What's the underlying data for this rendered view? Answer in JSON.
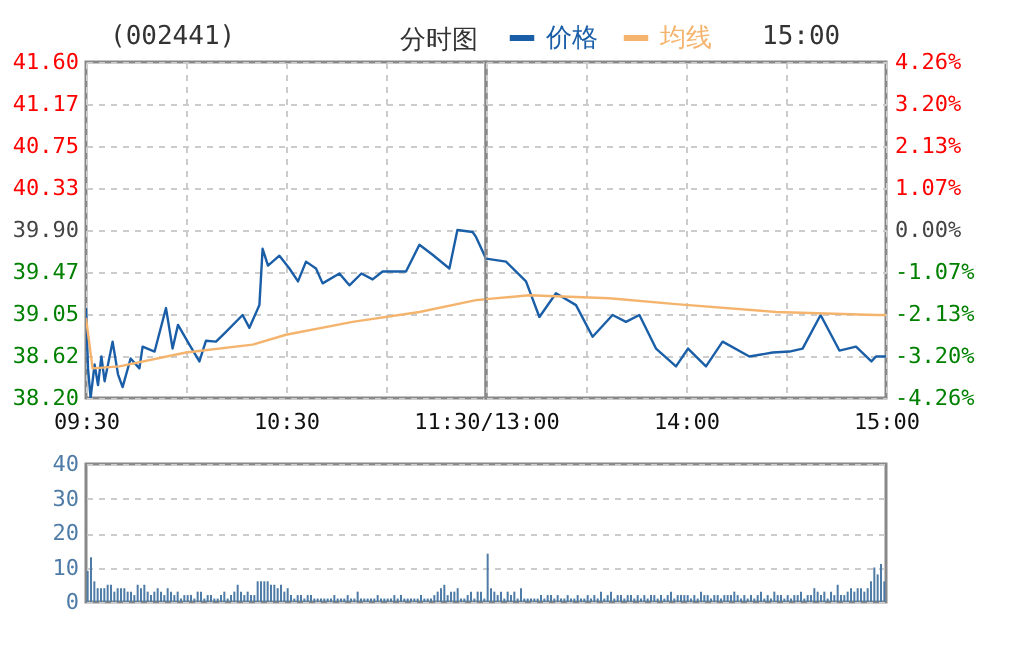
{
  "chart_data": [
    {
      "type": "line",
      "title": "(002441)",
      "subtitle": "分时图",
      "annotations": [
        "15:00"
      ],
      "xlim": [
        9.5,
        11.5
      ],
      "xticks": [
        {
          "value": 9.5,
          "label": "09:30"
        },
        {
          "value": 10,
          "label": null
        },
        {
          "value": 10.5,
          "label": "10:30"
        },
        {
          "value": 11,
          "label": null
        },
        {
          "value": 11.5,
          "label": "11:30/13:00"
        }
      ],
      "ylim": [
        38.2,
        41.6
      ],
      "yticks": [
        {
          "value": 38.2,
          "label": "38.20"
        },
        {
          "value": 38.62,
          "label": "38.62"
        },
        {
          "value": 39.05,
          "label": "39.05"
        },
        {
          "value": 39.47,
          "label": "39.47"
        },
        {
          "value": 39.9,
          "label": "39.90"
        },
        {
          "value": 40.33,
          "label": "40.33"
        },
        {
          "value": 40.75,
          "label": "40.75"
        },
        {
          "value": 41.17,
          "label": "41.17"
        },
        {
          "value": 41.6,
          "label": "41.60"
        }
      ],
      "grid": true,
      "legend": "top",
      "line_style": "solid",
      "series": [
        {
          "name": "价格",
          "color": "#1a5ea8",
          "x": [
            9.5,
            9.51,
            9.523,
            9.543,
            9.56,
            9.577,
            9.593,
            9.633,
            9.66,
            9.683,
            9.723,
            9.767,
            9.783,
            9.843,
            9.9,
            9.933,
            9.96,
            10.017,
            10.067,
            10.1,
            10.15,
            10.2,
            10.283,
            10.317,
            10.367,
            10.383,
            10.41,
            10.467,
            10.517,
            10.56,
            10.6,
            10.65,
            10.683,
            10.767,
            10.817,
            10.877,
            10.933,
            10.983,
            11.1,
            11.167,
            11.233,
            11.317,
            11.357,
            11.433,
            11.45,
            11.5
          ],
          "values": [
            39.11,
            38.5,
            38.2,
            38.54,
            38.33,
            38.62,
            38.37,
            38.77,
            38.44,
            38.31,
            38.6,
            38.5,
            38.72,
            38.67,
            39.11,
            38.7,
            38.94,
            38.74,
            38.57,
            38.78,
            38.77,
            38.87,
            39.04,
            38.91,
            39.14,
            39.71,
            39.54,
            39.64,
            39.51,
            39.38,
            39.58,
            39.51,
            39.36,
            39.46,
            39.34,
            39.46,
            39.4,
            39.48,
            39.48,
            39.75,
            39.65,
            39.51,
            39.9,
            39.88,
            39.83,
            39.61
          ]
        },
        {
          "name": "均线",
          "color": "#f5b46e",
          "x": [
            9.5,
            9.533,
            9.667,
            10,
            10.333,
            10.5,
            10.833,
            11.167,
            11.45,
            11.5
          ],
          "values": [
            39.01,
            38.5,
            38.52,
            38.66,
            38.74,
            38.84,
            38.97,
            39.07,
            39.19,
            39.2
          ]
        }
      ]
    },
    {
      "type": "line",
      "tick_labels": "x",
      "xlim": [
        13,
        15
      ],
      "xticks": [
        {
          "value": 13,
          "label": null
        },
        {
          "value": 13.5,
          "label": null
        },
        {
          "value": 14,
          "label": "14:00"
        },
        {
          "value": 14.5,
          "label": null
        },
        {
          "value": 15,
          "label": "15:00"
        }
      ],
      "ylim": [
        38.2,
        41.6
      ],
      "yticks": [
        38.2,
        38.62,
        39.05,
        39.47,
        39.9,
        40.33,
        40.75,
        41.17,
        41.6
      ],
      "y2lim": [
        -4.26,
        4.26
      ],
      "y2ticks": [
        {
          "value": -4.26,
          "label": "-4.26%"
        },
        {
          "value": -3.2,
          "label": "-3.20%"
        },
        {
          "value": -2.13,
          "label": "-2.13%"
        },
        {
          "value": -1.07,
          "label": "-1.07%"
        },
        {
          "value": 0,
          "label": "0.00%"
        },
        {
          "value": 1.07,
          "label": "1.07%"
        },
        {
          "value": 2.13,
          "label": "2.13%"
        },
        {
          "value": 3.2,
          "label": "3.20%"
        },
        {
          "value": 4.26,
          "label": "4.26%"
        }
      ],
      "grid": true,
      "line_style": "solid",
      "series": [
        {
          "color": "#1a5ea8",
          "x": [
            13,
            13.1,
            13.2,
            13.267,
            13.35,
            13.45,
            13.533,
            13.633,
            13.7,
            13.767,
            13.85,
            13.95,
            14.01,
            14.1,
            14.183,
            14.317,
            14.433,
            14.517,
            14.583,
            14.673,
            14.767,
            14.85,
            14.927,
            14.95,
            15
          ],
          "values": [
            39.61,
            39.58,
            39.38,
            39.02,
            39.26,
            39.14,
            38.82,
            39.04,
            38.97,
            39.04,
            38.7,
            38.52,
            38.7,
            38.52,
            38.77,
            38.62,
            38.66,
            38.67,
            38.7,
            39.04,
            38.68,
            38.72,
            38.57,
            38.62,
            38.62
          ]
        },
        {
          "color": "#f5b46e",
          "x": [
            13,
            13.217,
            13.617,
            13.95,
            14.45,
            14.95,
            15
          ],
          "values": [
            39.2,
            39.24,
            39.21,
            39.15,
            39.07,
            39.04,
            39.04
          ]
        }
      ]
    },
    {
      "type": "bar",
      "tick_labels": "y",
      "grid": "y",
      "color": "#4f7ca6",
      "categories": [
        null,
        null,
        null,
        null,
        null,
        null,
        null,
        null,
        null,
        null,
        null,
        null,
        null,
        null,
        null,
        null,
        null,
        null,
        null,
        null,
        null,
        null,
        null,
        null,
        null,
        null,
        null,
        null,
        null,
        null,
        null,
        null,
        null,
        null,
        null,
        null,
        null,
        null,
        null,
        null,
        null,
        null,
        null,
        null,
        null,
        null,
        null,
        null,
        null,
        null,
        null,
        null,
        null,
        null,
        null,
        null,
        null,
        null,
        null,
        null,
        null,
        null,
        null,
        null,
        null,
        null,
        null,
        null,
        null,
        null,
        null,
        null,
        null,
        null,
        null,
        null,
        null,
        null,
        null,
        null,
        null,
        null,
        null,
        null,
        null,
        null,
        null,
        null,
        null,
        null,
        null,
        null,
        null,
        null,
        null,
        null,
        null,
        null,
        null,
        null,
        null,
        null,
        null,
        null,
        null,
        null,
        null,
        null,
        null,
        null,
        null,
        null,
        null,
        null,
        null,
        null,
        null,
        null,
        null,
        null,
        null,
        null,
        null,
        null,
        null,
        null,
        null,
        null,
        null,
        null,
        null,
        null,
        null,
        null,
        null,
        null,
        null,
        null,
        null,
        null,
        null,
        null,
        null,
        null,
        null,
        null,
        null,
        null,
        null,
        null,
        null,
        null,
        null,
        null,
        null,
        null,
        null,
        null,
        null,
        null,
        null,
        null,
        null,
        null,
        null,
        null,
        null,
        null,
        null,
        null,
        null,
        null,
        null,
        null,
        null,
        null,
        null,
        null,
        null,
        null,
        null,
        null,
        null,
        null,
        null,
        null,
        null,
        null,
        null,
        null,
        null,
        null,
        null,
        null,
        null,
        null,
        null,
        null,
        null,
        null,
        null,
        null,
        null,
        null,
        null,
        null,
        null,
        null,
        null,
        null,
        null,
        null,
        null,
        null,
        null,
        null,
        null,
        null,
        null,
        null,
        null,
        null,
        null,
        null,
        null,
        null,
        null,
        null,
        null,
        null,
        null,
        null,
        null,
        null,
        null,
        null,
        null,
        null,
        null,
        null
      ],
      "ylim": [
        0,
        40
      ],
      "yticks": [
        0,
        10,
        20,
        30,
        40
      ],
      "values": [
        9,
        13,
        6,
        4,
        4,
        4,
        5,
        5,
        3,
        4,
        4,
        4,
        3,
        3,
        2,
        5,
        4,
        5,
        3,
        2,
        3,
        4,
        3,
        2,
        4,
        3,
        2,
        3,
        1,
        2,
        2,
        2,
        1,
        3,
        3,
        1,
        2,
        2,
        1,
        1,
        2,
        3,
        1,
        2,
        3,
        5,
        3,
        2,
        3,
        2,
        2,
        6,
        6,
        6,
        6,
        5,
        5,
        4,
        5,
        3,
        4,
        2,
        1,
        2,
        2,
        1,
        2,
        2,
        1,
        1,
        1,
        1,
        1,
        1,
        2,
        1,
        1,
        1,
        2,
        1,
        1,
        3,
        1,
        1,
        1,
        1,
        1,
        2,
        1,
        1,
        1,
        1,
        2,
        1,
        2,
        1,
        1,
        1,
        1,
        1,
        2,
        1,
        1,
        1,
        2,
        3,
        4,
        5,
        2,
        3,
        3,
        4,
        1,
        1,
        2,
        3,
        1,
        3,
        3,
        1,
        14,
        4,
        3,
        2,
        3,
        1,
        3,
        2,
        3,
        1,
        4,
        1,
        1,
        1,
        1,
        1,
        2,
        1,
        2,
        2,
        1,
        2,
        1,
        1,
        2,
        1,
        1,
        2,
        1,
        1,
        2,
        1,
        2,
        1,
        3,
        1,
        2,
        3,
        1,
        2,
        2,
        1,
        2,
        2,
        1,
        2,
        1,
        2,
        1,
        2,
        2,
        1,
        2,
        1,
        2,
        3,
        1,
        2,
        2,
        2,
        2,
        1,
        2,
        1,
        3,
        2,
        2,
        1,
        2,
        2,
        1,
        2,
        2,
        2,
        3,
        2,
        1,
        2,
        1,
        2,
        1,
        2,
        3,
        1,
        2,
        1,
        3,
        2,
        2,
        1,
        2,
        1,
        2,
        2,
        3,
        1,
        2,
        2,
        4,
        3,
        2,
        3,
        1,
        3,
        2,
        5,
        2,
        2,
        3,
        4,
        3,
        4,
        4,
        3,
        4,
        6,
        10,
        8,
        11,
        6
      ]
    }
  ]
}
